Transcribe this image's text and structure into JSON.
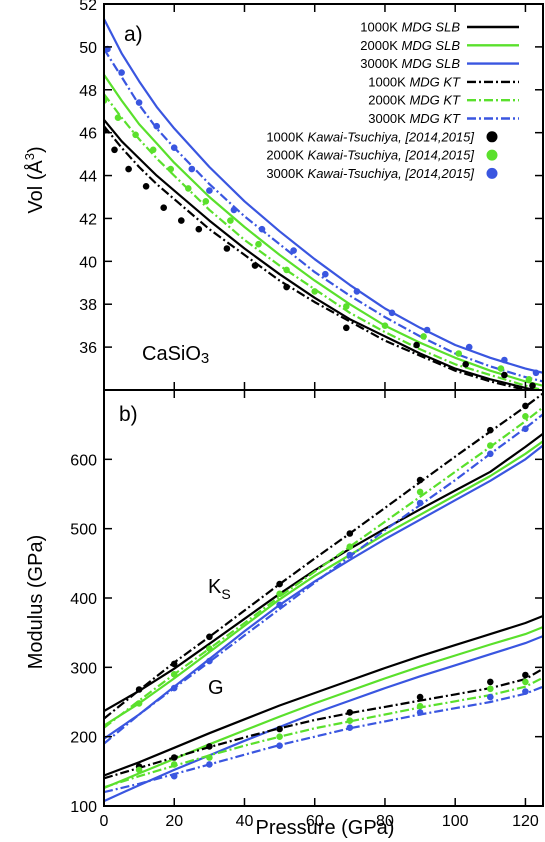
{
  "figure": {
    "panel_a_label": "a)",
    "panel_b_label": "b)",
    "compound_label": "CaSiO",
    "compound_subscript": "3",
    "ks_label": "K",
    "ks_subscript": "S",
    "g_label": "G",
    "xlabel": "Pressure (GPa)",
    "ylabel_a_main": "Vol (Å",
    "ylabel_a_sup": "3",
    "ylabel_a_close": ")",
    "ylabel_b": "Modulus (GPa)"
  },
  "legend": [
    {
      "temp": "1000K ",
      "label": "MDG SLB",
      "style": "solid",
      "color": "#000000"
    },
    {
      "temp": "2000K ",
      "label": "MDG SLB",
      "style": "solid",
      "color": "#5ae02c"
    },
    {
      "temp": "3000K ",
      "label": "MDG SLB",
      "style": "solid",
      "color": "#3a56e0"
    },
    {
      "temp": "1000K ",
      "label": "MDG KT",
      "style": "dashdot",
      "color": "#000000"
    },
    {
      "temp": "2000K ",
      "label": "MDG KT",
      "style": "dashdot",
      "color": "#5ae02c"
    },
    {
      "temp": "3000K ",
      "label": "MDG KT",
      "style": "dashdot",
      "color": "#3a56e0"
    },
    {
      "temp": "1000K ",
      "label": "Kawai-Tsuchiya, [2014,2015]",
      "style": "point",
      "color": "#000000"
    },
    {
      "temp": "2000K ",
      "label": "Kawai-Tsuchiya, [2014,2015]",
      "style": "point",
      "color": "#5ae02c"
    },
    {
      "temp": "3000K ",
      "label": "Kawai-Tsuchiya, [2014,2015]",
      "style": "point",
      "color": "#3a56e0"
    }
  ],
  "chart_data": [
    {
      "type": "line",
      "panel": "a",
      "xlim": [
        0,
        125
      ],
      "ylim": [
        34,
        52
      ],
      "xticks": [
        0,
        20,
        40,
        60,
        80,
        100,
        120
      ],
      "yticks": [
        36,
        38,
        40,
        42,
        44,
        46,
        48,
        50,
        52
      ],
      "legend_position": "top-right",
      "series": [
        {
          "name": "1000K MDG SLB",
          "style": "solid",
          "color": "#000000",
          "x": [
            0,
            5,
            10,
            15,
            20,
            30,
            40,
            50,
            60,
            70,
            80,
            90,
            100,
            110,
            120,
            125
          ],
          "y": [
            46.6,
            45.6,
            44.8,
            44.0,
            43.3,
            41.9,
            40.6,
            39.4,
            38.3,
            37.3,
            36.5,
            35.7,
            35.0,
            34.5,
            34.1,
            33.9
          ]
        },
        {
          "name": "2000K MDG SLB",
          "style": "solid",
          "color": "#5ae02c",
          "x": [
            0,
            5,
            10,
            15,
            20,
            30,
            40,
            50,
            60,
            70,
            80,
            90,
            100,
            110,
            120,
            125
          ],
          "y": [
            48.7,
            47.5,
            46.4,
            45.5,
            44.6,
            43.0,
            41.6,
            40.3,
            39.1,
            38.0,
            37.0,
            36.2,
            35.5,
            34.9,
            34.4,
            34.2
          ]
        },
        {
          "name": "3000K MDG SLB",
          "style": "solid",
          "color": "#3a56e0",
          "x": [
            0,
            5,
            10,
            15,
            20,
            30,
            40,
            50,
            60,
            70,
            80,
            90,
            100,
            110,
            120,
            125
          ],
          "y": [
            51.3,
            49.7,
            48.4,
            47.2,
            46.2,
            44.4,
            42.8,
            41.4,
            40.1,
            38.9,
            37.8,
            36.9,
            36.1,
            35.5,
            35.0,
            34.8
          ]
        },
        {
          "name": "1000K MDG KT",
          "style": "dashdot",
          "color": "#000000",
          "x": [
            0,
            5,
            10,
            15,
            20,
            30,
            40,
            50,
            60,
            70,
            80,
            90,
            100,
            110,
            120,
            125
          ],
          "y": [
            46.3,
            45.3,
            44.4,
            43.6,
            42.9,
            41.5,
            40.3,
            39.1,
            38.1,
            37.2,
            36.3,
            35.6,
            34.9,
            34.4,
            34.0,
            33.8
          ]
        },
        {
          "name": "2000K MDG KT",
          "style": "dashdot",
          "color": "#5ae02c",
          "x": [
            0,
            5,
            10,
            15,
            20,
            30,
            40,
            50,
            60,
            70,
            80,
            90,
            100,
            110,
            120,
            125
          ],
          "y": [
            47.8,
            46.7,
            45.7,
            44.8,
            44.0,
            42.4,
            41.0,
            39.8,
            38.7,
            37.6,
            36.7,
            35.9,
            35.2,
            34.7,
            34.2,
            34.0
          ]
        },
        {
          "name": "3000K MDG KT",
          "style": "dashdot",
          "color": "#3a56e0",
          "x": [
            0,
            5,
            10,
            15,
            20,
            30,
            40,
            50,
            60,
            70,
            80,
            90,
            100,
            110,
            120,
            125
          ],
          "y": [
            49.9,
            48.6,
            47.3,
            46.2,
            45.3,
            43.6,
            42.1,
            40.8,
            39.5,
            38.4,
            37.4,
            36.5,
            35.7,
            35.1,
            34.6,
            34.4
          ]
        },
        {
          "name": "1000K Kawai-Tsuchiya, [2014,2015]",
          "style": "point",
          "color": "#000000",
          "x": [
            0,
            3,
            7,
            12,
            17,
            22,
            27,
            35,
            43,
            52,
            69,
            89,
            103,
            114,
            122
          ],
          "y": [
            46.1,
            45.2,
            44.3,
            43.5,
            42.5,
            41.9,
            41.5,
            40.6,
            39.8,
            38.8,
            36.9,
            36.1,
            35.2,
            34.7,
            34.2
          ]
        },
        {
          "name": "2000K Kawai-Tsuchiya, [2014,2015]",
          "style": "point",
          "color": "#5ae02c",
          "x": [
            0,
            4,
            9,
            14,
            19,
            24,
            29,
            36,
            44,
            52,
            60,
            69,
            80,
            91,
            101,
            113,
            121
          ],
          "y": [
            47.5,
            46.7,
            45.9,
            45.2,
            44.3,
            43.4,
            42.8,
            41.9,
            40.8,
            39.6,
            38.6,
            37.9,
            37.0,
            36.5,
            35.7,
            35.0,
            34.5
          ]
        },
        {
          "name": "3000K Kawai-Tsuchiya, [2014,2015]",
          "style": "point",
          "color": "#3a56e0",
          "x": [
            1,
            5,
            10,
            15,
            20,
            25,
            30,
            37,
            45,
            54,
            63,
            72,
            82,
            92,
            104,
            114,
            123
          ],
          "y": [
            49.9,
            48.8,
            47.4,
            46.3,
            45.3,
            44.3,
            43.3,
            42.4,
            41.5,
            40.5,
            39.4,
            38.6,
            37.6,
            36.8,
            36.0,
            35.4,
            34.8
          ]
        }
      ]
    },
    {
      "type": "line",
      "panel": "b",
      "xlim": [
        0,
        125
      ],
      "ylim": [
        100,
        700
      ],
      "xticks": [
        0,
        20,
        40,
        60,
        80,
        100,
        120
      ],
      "yticks": [
        100,
        200,
        300,
        400,
        500,
        600
      ],
      "series": [
        {
          "name": "1000K MDG SLB K_S",
          "style": "solid",
          "color": "#000000",
          "x": [
            0,
            10,
            20,
            30,
            40,
            50,
            60,
            70,
            80,
            90,
            100,
            110,
            120,
            125
          ],
          "y": [
            237,
            266,
            298,
            334,
            370,
            406,
            440,
            471,
            500,
            528,
            555,
            582,
            618,
            637
          ]
        },
        {
          "name": "2000K MDG SLB K_S",
          "style": "solid",
          "color": "#5ae02c",
          "x": [
            0,
            10,
            20,
            30,
            40,
            50,
            60,
            70,
            80,
            90,
            100,
            110,
            120,
            125
          ],
          "y": [
            216,
            248,
            284,
            322,
            360,
            398,
            432,
            462,
            492,
            520,
            548,
            576,
            608,
            626
          ]
        },
        {
          "name": "3000K MDG SLB K_S",
          "style": "solid",
          "color": "#3a56e0",
          "x": [
            0,
            10,
            20,
            30,
            40,
            50,
            60,
            70,
            80,
            90,
            100,
            110,
            120,
            125
          ],
          "y": [
            197,
            232,
            272,
            312,
            352,
            390,
            424,
            455,
            485,
            513,
            541,
            569,
            600,
            620
          ]
        },
        {
          "name": "1000K MDG KT K_S",
          "style": "dashdot",
          "color": "#000000",
          "x": [
            0,
            10,
            20,
            30,
            40,
            50,
            60,
            70,
            80,
            90,
            100,
            110,
            120,
            125
          ],
          "y": [
            226,
            267,
            307,
            344,
            382,
            420,
            457,
            493,
            530,
            567,
            604,
            640,
            676,
            695
          ]
        },
        {
          "name": "2000K MDG KT K_S",
          "style": "dashdot",
          "color": "#5ae02c",
          "x": [
            0,
            10,
            20,
            30,
            40,
            50,
            60,
            70,
            80,
            90,
            100,
            110,
            120,
            125
          ],
          "y": [
            213,
            252,
            290,
            327,
            364,
            402,
            438,
            474,
            510,
            546,
            582,
            618,
            655,
            675
          ]
        },
        {
          "name": "3000K MDG KT K_S",
          "style": "dashdot",
          "color": "#3a56e0",
          "x": [
            0,
            10,
            20,
            30,
            40,
            50,
            60,
            70,
            80,
            90,
            100,
            110,
            120,
            125
          ],
          "y": [
            190,
            232,
            270,
            308,
            346,
            384,
            422,
            460,
            498,
            534,
            570,
            608,
            645,
            665
          ]
        },
        {
          "name": "1000K Kawai-Tsuchiya K_S",
          "style": "point",
          "color": "#000000",
          "x": [
            10,
            20,
            30,
            50,
            70,
            90,
            110,
            120
          ],
          "y": [
            268,
            305,
            344,
            420,
            493,
            570,
            642,
            677
          ]
        },
        {
          "name": "2000K Kawai-Tsuchiya K_S",
          "style": "point",
          "color": "#5ae02c",
          "x": [
            10,
            20,
            30,
            50,
            70,
            90,
            110,
            120
          ],
          "y": [
            248,
            290,
            327,
            406,
            474,
            553,
            620,
            662
          ]
        },
        {
          "name": "3000K Kawai-Tsuchiya K_S",
          "style": "point",
          "color": "#3a56e0",
          "x": [
            20,
            30,
            50,
            70,
            90,
            110,
            120
          ],
          "y": [
            270,
            309,
            390,
            462,
            537,
            608,
            644
          ]
        },
        {
          "name": "1000K MDG SLB G",
          "style": "solid",
          "color": "#000000",
          "x": [
            0,
            10,
            20,
            30,
            40,
            50,
            60,
            70,
            80,
            90,
            100,
            110,
            120,
            125
          ],
          "y": [
            144,
            163,
            184,
            205,
            225,
            245,
            263,
            281,
            299,
            316,
            332,
            348,
            364,
            374
          ]
        },
        {
          "name": "2000K MDG SLB G",
          "style": "solid",
          "color": "#5ae02c",
          "x": [
            0,
            10,
            20,
            30,
            40,
            50,
            60,
            70,
            80,
            90,
            100,
            110,
            120,
            125
          ],
          "y": [
            126,
            147,
            168,
            189,
            209,
            229,
            248,
            266,
            284,
            301,
            317,
            333,
            348,
            358
          ]
        },
        {
          "name": "3000K MDG SLB G",
          "style": "solid",
          "color": "#3a56e0",
          "x": [
            0,
            10,
            20,
            30,
            40,
            50,
            60,
            70,
            80,
            90,
            100,
            110,
            120,
            125
          ],
          "y": [
            107,
            130,
            152,
            173,
            194,
            214,
            234,
            252,
            270,
            287,
            303,
            319,
            335,
            345
          ]
        },
        {
          "name": "1000K MDG KT G",
          "style": "dashdot",
          "color": "#000000",
          "x": [
            0,
            10,
            20,
            30,
            40,
            50,
            60,
            70,
            80,
            90,
            100,
            110,
            120,
            125
          ],
          "y": [
            140,
            155,
            170,
            185,
            199,
            212,
            224,
            234,
            243,
            252,
            261,
            270,
            283,
            298
          ]
        },
        {
          "name": "2000K MDG KT G",
          "style": "dashdot",
          "color": "#5ae02c",
          "x": [
            0,
            10,
            20,
            30,
            40,
            50,
            60,
            70,
            80,
            90,
            100,
            110,
            120,
            125
          ],
          "y": [
            127,
            143,
            158,
            173,
            187,
            200,
            212,
            222,
            232,
            242,
            251,
            260,
            272,
            285
          ]
        },
        {
          "name": "3000K MDG KT G",
          "style": "dashdot",
          "color": "#3a56e0",
          "x": [
            0,
            10,
            20,
            30,
            40,
            50,
            60,
            70,
            80,
            90,
            100,
            110,
            120,
            125
          ],
          "y": [
            120,
            132,
            146,
            160,
            174,
            188,
            200,
            212,
            222,
            232,
            241,
            250,
            262,
            272
          ]
        },
        {
          "name": "1000K Kawai-Tsuchiya G",
          "style": "point",
          "color": "#000000",
          "x": [
            10,
            20,
            30,
            50,
            70,
            90,
            110,
            120
          ],
          "y": [
            157,
            170,
            186,
            211,
            235,
            257,
            279,
            289
          ]
        },
        {
          "name": "2000K Kawai-Tsuchiya G",
          "style": "point",
          "color": "#5ae02c",
          "x": [
            10,
            20,
            30,
            50,
            70,
            90,
            110,
            120
          ],
          "y": [
            152,
            160,
            170,
            200,
            223,
            244,
            269,
            279
          ]
        },
        {
          "name": "3000K Kawai-Tsuchiya G",
          "style": "point",
          "color": "#3a56e0",
          "x": [
            20,
            30,
            50,
            70,
            90,
            110,
            120
          ],
          "y": [
            143,
            160,
            187,
            213,
            235,
            257,
            265
          ]
        }
      ]
    }
  ]
}
